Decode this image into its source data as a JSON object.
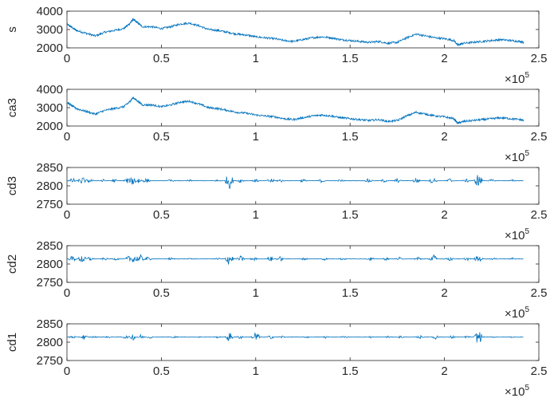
{
  "chart_data": [
    {
      "type": "line",
      "ylabel": "s",
      "ylim": [
        2000,
        4000
      ],
      "xlim": [
        0,
        250000
      ],
      "yticks": [
        2000,
        3000,
        4000
      ],
      "xticks": [
        0,
        50000,
        100000,
        150000,
        200000,
        250000
      ],
      "xtick_labels": [
        "0",
        "0.5",
        "1",
        "1.5",
        "2",
        "2.5"
      ],
      "x_multiplier": "×10",
      "x_multiplier_exp": "5",
      "color": "#0072bd",
      "series": [
        {
          "x": [
            0,
            2000,
            5000,
            10000,
            15000,
            20000,
            25000,
            30000,
            33000,
            35000,
            37000,
            40000,
            45000,
            50000,
            55000,
            60000,
            65000,
            70000,
            75000,
            80000,
            85000,
            90000,
            95000,
            100000,
            105000,
            110000,
            115000,
            120000,
            125000,
            130000,
            135000,
            140000,
            145000,
            150000,
            155000,
            160000,
            165000,
            170000,
            175000,
            180000,
            185000,
            190000,
            195000,
            200000,
            205000,
            207000,
            210000,
            215000,
            220000,
            225000,
            230000,
            235000,
            240000,
            242000
          ],
          "y": [
            3300,
            3150,
            2950,
            2800,
            2650,
            2850,
            2950,
            3050,
            3300,
            3550,
            3400,
            3150,
            3150,
            3050,
            3150,
            3300,
            3350,
            3200,
            3000,
            2950,
            2850,
            2750,
            2700,
            2600,
            2550,
            2500,
            2400,
            2350,
            2450,
            2550,
            2600,
            2550,
            2450,
            2400,
            2350,
            2300,
            2350,
            2250,
            2300,
            2550,
            2750,
            2650,
            2550,
            2500,
            2400,
            2150,
            2250,
            2300,
            2350,
            2400,
            2450,
            2400,
            2350,
            2300
          ]
        }
      ]
    },
    {
      "type": "line",
      "ylabel": "ca3",
      "ylim": [
        2000,
        4000
      ],
      "xlim": [
        0,
        250000
      ],
      "yticks": [
        2000,
        3000,
        4000
      ],
      "xticks": [
        0,
        50000,
        100000,
        150000,
        200000,
        250000
      ],
      "xtick_labels": [
        "0",
        "0.5",
        "1",
        "1.5",
        "2",
        "2.5"
      ],
      "x_multiplier": "×10",
      "x_multiplier_exp": "5",
      "color": "#0072bd",
      "series": [
        {
          "x": [
            0,
            2000,
            5000,
            10000,
            15000,
            20000,
            25000,
            30000,
            33000,
            35000,
            37000,
            40000,
            45000,
            50000,
            55000,
            60000,
            65000,
            70000,
            75000,
            80000,
            85000,
            90000,
            95000,
            100000,
            105000,
            110000,
            115000,
            120000,
            125000,
            130000,
            135000,
            140000,
            145000,
            150000,
            155000,
            160000,
            165000,
            170000,
            175000,
            180000,
            185000,
            190000,
            195000,
            200000,
            205000,
            207000,
            210000,
            215000,
            220000,
            225000,
            230000,
            235000,
            240000,
            242000
          ],
          "y": [
            3300,
            3150,
            2950,
            2800,
            2650,
            2850,
            2950,
            3050,
            3300,
            3550,
            3400,
            3150,
            3150,
            3050,
            3150,
            3300,
            3350,
            3200,
            3000,
            2950,
            2850,
            2750,
            2700,
            2600,
            2550,
            2500,
            2400,
            2350,
            2450,
            2550,
            2600,
            2550,
            2450,
            2400,
            2350,
            2300,
            2350,
            2250,
            2300,
            2550,
            2750,
            2650,
            2550,
            2500,
            2400,
            2150,
            2250,
            2300,
            2350,
            2400,
            2450,
            2400,
            2350,
            2300
          ]
        }
      ]
    },
    {
      "type": "line",
      "ylabel": "cd3",
      "ylim": [
        2750,
        2850
      ],
      "xlim": [
        0,
        250000
      ],
      "yticks": [
        2750,
        2800,
        2850
      ],
      "xticks": [
        0,
        50000,
        100000,
        150000,
        200000,
        250000
      ],
      "xtick_labels": [
        "0",
        "0.5",
        "1",
        "1.5",
        "2",
        "2.5"
      ],
      "x_multiplier": "×10",
      "x_multiplier_exp": "5",
      "color": "#0072bd",
      "baseline": 2814,
      "xmax": 242000,
      "spikes": [
        {
          "x": 3000,
          "amp": 8
        },
        {
          "x": 8000,
          "amp": 12
        },
        {
          "x": 12000,
          "amp": 6
        },
        {
          "x": 19000,
          "amp": 5
        },
        {
          "x": 25000,
          "amp": 5
        },
        {
          "x": 32000,
          "amp": 8
        },
        {
          "x": 35000,
          "amp": 14
        },
        {
          "x": 38000,
          "amp": 10
        },
        {
          "x": 42000,
          "amp": 7
        },
        {
          "x": 55000,
          "amp": 4
        },
        {
          "x": 65000,
          "amp": 3
        },
        {
          "x": 80000,
          "amp": 4
        },
        {
          "x": 86000,
          "amp": 25
        },
        {
          "x": 92000,
          "amp": 6
        },
        {
          "x": 100000,
          "amp": 5
        },
        {
          "x": 108000,
          "amp": 8
        },
        {
          "x": 113000,
          "amp": 6
        },
        {
          "x": 125000,
          "amp": 5
        },
        {
          "x": 135000,
          "amp": 6
        },
        {
          "x": 145000,
          "amp": 4
        },
        {
          "x": 160000,
          "amp": 7
        },
        {
          "x": 168000,
          "amp": 5
        },
        {
          "x": 175000,
          "amp": 6
        },
        {
          "x": 185000,
          "amp": 9
        },
        {
          "x": 194000,
          "amp": 10
        },
        {
          "x": 203000,
          "amp": 7
        },
        {
          "x": 212000,
          "amp": 5
        },
        {
          "x": 218000,
          "amp": 22
        },
        {
          "x": 225000,
          "amp": 4
        },
        {
          "x": 236000,
          "amp": 3
        }
      ]
    },
    {
      "type": "line",
      "ylabel": "cd2",
      "ylim": [
        2750,
        2850
      ],
      "xlim": [
        0,
        250000
      ],
      "yticks": [
        2750,
        2800,
        2850
      ],
      "xticks": [
        0,
        50000,
        100000,
        150000,
        200000,
        250000
      ],
      "xtick_labels": [
        "0",
        "0.5",
        "1",
        "1.5",
        "2",
        "2.5"
      ],
      "x_multiplier": "×10",
      "x_multiplier_exp": "5",
      "color": "#0072bd",
      "baseline": 2814,
      "xmax": 242000,
      "spikes": [
        {
          "x": 3000,
          "amp": 9
        },
        {
          "x": 8000,
          "amp": 13
        },
        {
          "x": 12000,
          "amp": 7
        },
        {
          "x": 20000,
          "amp": 4
        },
        {
          "x": 26000,
          "amp": 4
        },
        {
          "x": 33000,
          "amp": 10
        },
        {
          "x": 36000,
          "amp": 16
        },
        {
          "x": 39000,
          "amp": 11
        },
        {
          "x": 43000,
          "amp": 6
        },
        {
          "x": 55000,
          "amp": 4
        },
        {
          "x": 66000,
          "amp": 3
        },
        {
          "x": 80000,
          "amp": 4
        },
        {
          "x": 86000,
          "amp": 20
        },
        {
          "x": 92000,
          "amp": 9
        },
        {
          "x": 99000,
          "amp": 6
        },
        {
          "x": 108000,
          "amp": 8
        },
        {
          "x": 113000,
          "amp": 7
        },
        {
          "x": 126000,
          "amp": 4
        },
        {
          "x": 136000,
          "amp": 5
        },
        {
          "x": 146000,
          "amp": 4
        },
        {
          "x": 161000,
          "amp": 5
        },
        {
          "x": 169000,
          "amp": 4
        },
        {
          "x": 176000,
          "amp": 5
        },
        {
          "x": 186000,
          "amp": 7
        },
        {
          "x": 194000,
          "amp": 14
        },
        {
          "x": 203000,
          "amp": 6
        },
        {
          "x": 212000,
          "amp": 5
        },
        {
          "x": 218000,
          "amp": 12
        },
        {
          "x": 226000,
          "amp": 3
        },
        {
          "x": 236000,
          "amp": 3
        }
      ]
    },
    {
      "type": "line",
      "ylabel": "cd1",
      "ylim": [
        2750,
        2850
      ],
      "xlim": [
        0,
        250000
      ],
      "yticks": [
        2750,
        2800,
        2850
      ],
      "xticks": [
        0,
        50000,
        100000,
        150000,
        200000,
        250000
      ],
      "xtick_labels": [
        "0",
        "0.5",
        "1",
        "1.5",
        "2",
        "2.5"
      ],
      "x_multiplier": "×10",
      "x_multiplier_exp": "5",
      "color": "#0072bd",
      "baseline": 2814,
      "xmax": 242000,
      "spikes": [
        {
          "x": 3000,
          "amp": 5
        },
        {
          "x": 9000,
          "amp": 7
        },
        {
          "x": 14000,
          "amp": 3
        },
        {
          "x": 22000,
          "amp": 3
        },
        {
          "x": 31000,
          "amp": 5
        },
        {
          "x": 35000,
          "amp": 9
        },
        {
          "x": 39000,
          "amp": 7
        },
        {
          "x": 44000,
          "amp": 4
        },
        {
          "x": 57000,
          "amp": 3
        },
        {
          "x": 70000,
          "amp": 2
        },
        {
          "x": 80000,
          "amp": 3
        },
        {
          "x": 86000,
          "amp": 14
        },
        {
          "x": 92000,
          "amp": 6
        },
        {
          "x": 100000,
          "amp": 18
        },
        {
          "x": 108000,
          "amp": 5
        },
        {
          "x": 114000,
          "amp": 4
        },
        {
          "x": 127000,
          "amp": 3
        },
        {
          "x": 137000,
          "amp": 4
        },
        {
          "x": 147000,
          "amp": 3
        },
        {
          "x": 161000,
          "amp": 3
        },
        {
          "x": 170000,
          "amp": 3
        },
        {
          "x": 177000,
          "amp": 4
        },
        {
          "x": 187000,
          "amp": 5
        },
        {
          "x": 195000,
          "amp": 7
        },
        {
          "x": 204000,
          "amp": 5
        },
        {
          "x": 212000,
          "amp": 4
        },
        {
          "x": 218000,
          "amp": 22
        },
        {
          "x": 226000,
          "amp": 2
        },
        {
          "x": 236000,
          "amp": 2
        }
      ]
    }
  ]
}
